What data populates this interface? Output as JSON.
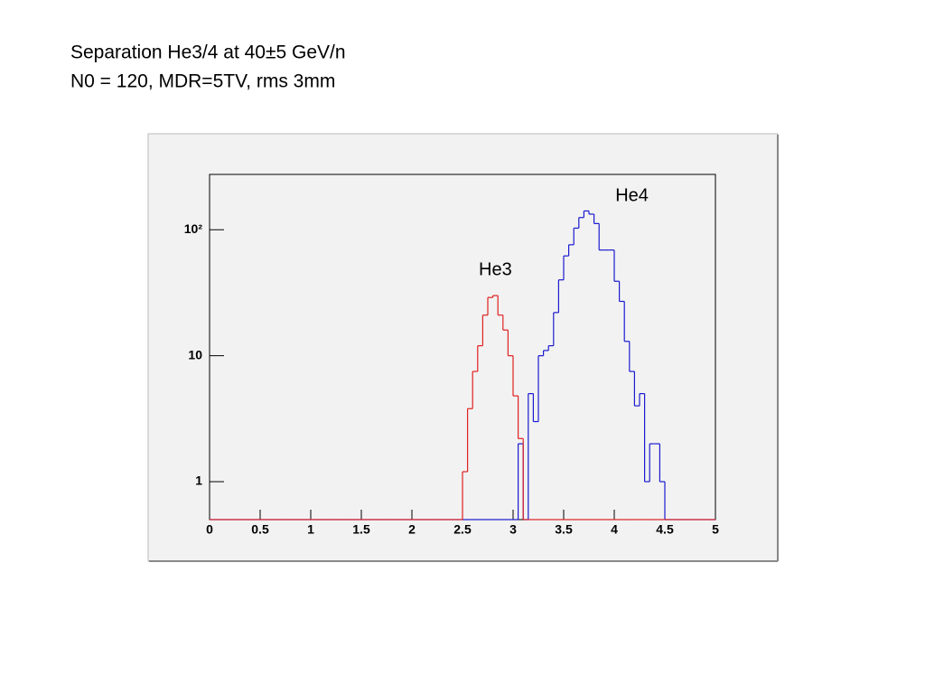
{
  "chart_data": {
    "type": "histogram",
    "title": "Separation He3/4 at 40±5 GeV/n",
    "subtitle": "N0 = 120, MDR=5TV, rms 3mm",
    "log_y": true,
    "bins": [
      0,
      0.05,
      0.1,
      0.15,
      0.2,
      0.25,
      0.3,
      0.35,
      0.4,
      0.45,
      0.5,
      0.55,
      0.6,
      0.65,
      0.7,
      0.75,
      0.8,
      0.85,
      0.9,
      0.95,
      1,
      1.05,
      1.1,
      1.15,
      1.2,
      1.25,
      1.3,
      1.35,
      1.4,
      1.45,
      1.5,
      1.55,
      1.6,
      1.65,
      1.7,
      1.75,
      1.8,
      1.85,
      1.9,
      1.95,
      2,
      2.05,
      2.1,
      2.15,
      2.2,
      2.25,
      2.3,
      2.35,
      2.4,
      2.45,
      2.5,
      2.55,
      2.6,
      2.65,
      2.7,
      2.75,
      2.8,
      2.85,
      2.9,
      2.95,
      3,
      3.05,
      3.1,
      3.15,
      3.2,
      3.25,
      3.3,
      3.35,
      3.4,
      3.45,
      3.5,
      3.55,
      3.6,
      3.65,
      3.7,
      3.75,
      3.8,
      3.85,
      3.9,
      3.95,
      4,
      4.05,
      4.1,
      4.15,
      4.2,
      4.25,
      4.3,
      4.35,
      4.4,
      4.45,
      4.5,
      4.55,
      4.6,
      4.65,
      4.7,
      4.75,
      4.8,
      4.85,
      4.9,
      4.95,
      5
    ],
    "series": [
      {
        "name": "He4",
        "color": "#1a1ad0",
        "values": [
          0,
          0,
          0,
          0,
          0,
          0,
          0,
          0,
          0,
          0,
          0,
          0,
          0,
          0,
          0,
          0,
          0,
          0,
          0,
          0,
          0,
          0,
          0,
          0,
          0,
          0,
          0,
          0,
          0,
          0,
          0,
          0,
          0,
          0,
          0,
          0,
          0,
          0,
          0,
          0,
          0,
          0,
          0,
          0,
          0,
          0,
          0,
          0,
          0,
          0,
          0,
          0,
          0,
          0,
          0,
          0,
          0,
          0,
          0,
          0,
          0,
          2,
          0,
          5,
          3,
          10,
          11,
          12,
          22,
          40,
          62,
          76,
          103,
          125,
          141,
          133,
          112,
          69,
          69,
          69,
          39,
          27,
          13,
          7.5,
          4,
          5,
          1,
          2,
          2,
          1,
          0,
          0,
          0,
          0,
          0,
          0,
          0,
          0,
          0,
          0
        ]
      },
      {
        "name": "He3",
        "color": "#e02020",
        "values": [
          0,
          0,
          0,
          0,
          0,
          0,
          0,
          0,
          0,
          0,
          0,
          0,
          0,
          0,
          0,
          0,
          0,
          0,
          0,
          0,
          0,
          0,
          0,
          0,
          0,
          0,
          0,
          0,
          0,
          0,
          0,
          0,
          0,
          0,
          0,
          0,
          0,
          0,
          0,
          0,
          0,
          0,
          0,
          0,
          0,
          0,
          0,
          0,
          0,
          0,
          1.2,
          3.8,
          7.5,
          12,
          21,
          29,
          30,
          21,
          16,
          10,
          4.8,
          2.2,
          0,
          0,
          0,
          0,
          0,
          0,
          0,
          0,
          0,
          0,
          0,
          0,
          0,
          0,
          0,
          0,
          0,
          0,
          0,
          0,
          0,
          0,
          0,
          0,
          0,
          0,
          0,
          0,
          0,
          0,
          0,
          0,
          0,
          0,
          0,
          0,
          0,
          0
        ]
      }
    ],
    "xlim": [
      0,
      5
    ],
    "xticks": [
      0,
      0.5,
      1,
      1.5,
      2,
      2.5,
      3,
      3.5,
      4,
      4.5,
      5
    ],
    "ylim": [
      0.5,
      275
    ],
    "yticks": [
      1,
      10,
      {
        "value": 100,
        "label": "10²"
      }
    ]
  }
}
